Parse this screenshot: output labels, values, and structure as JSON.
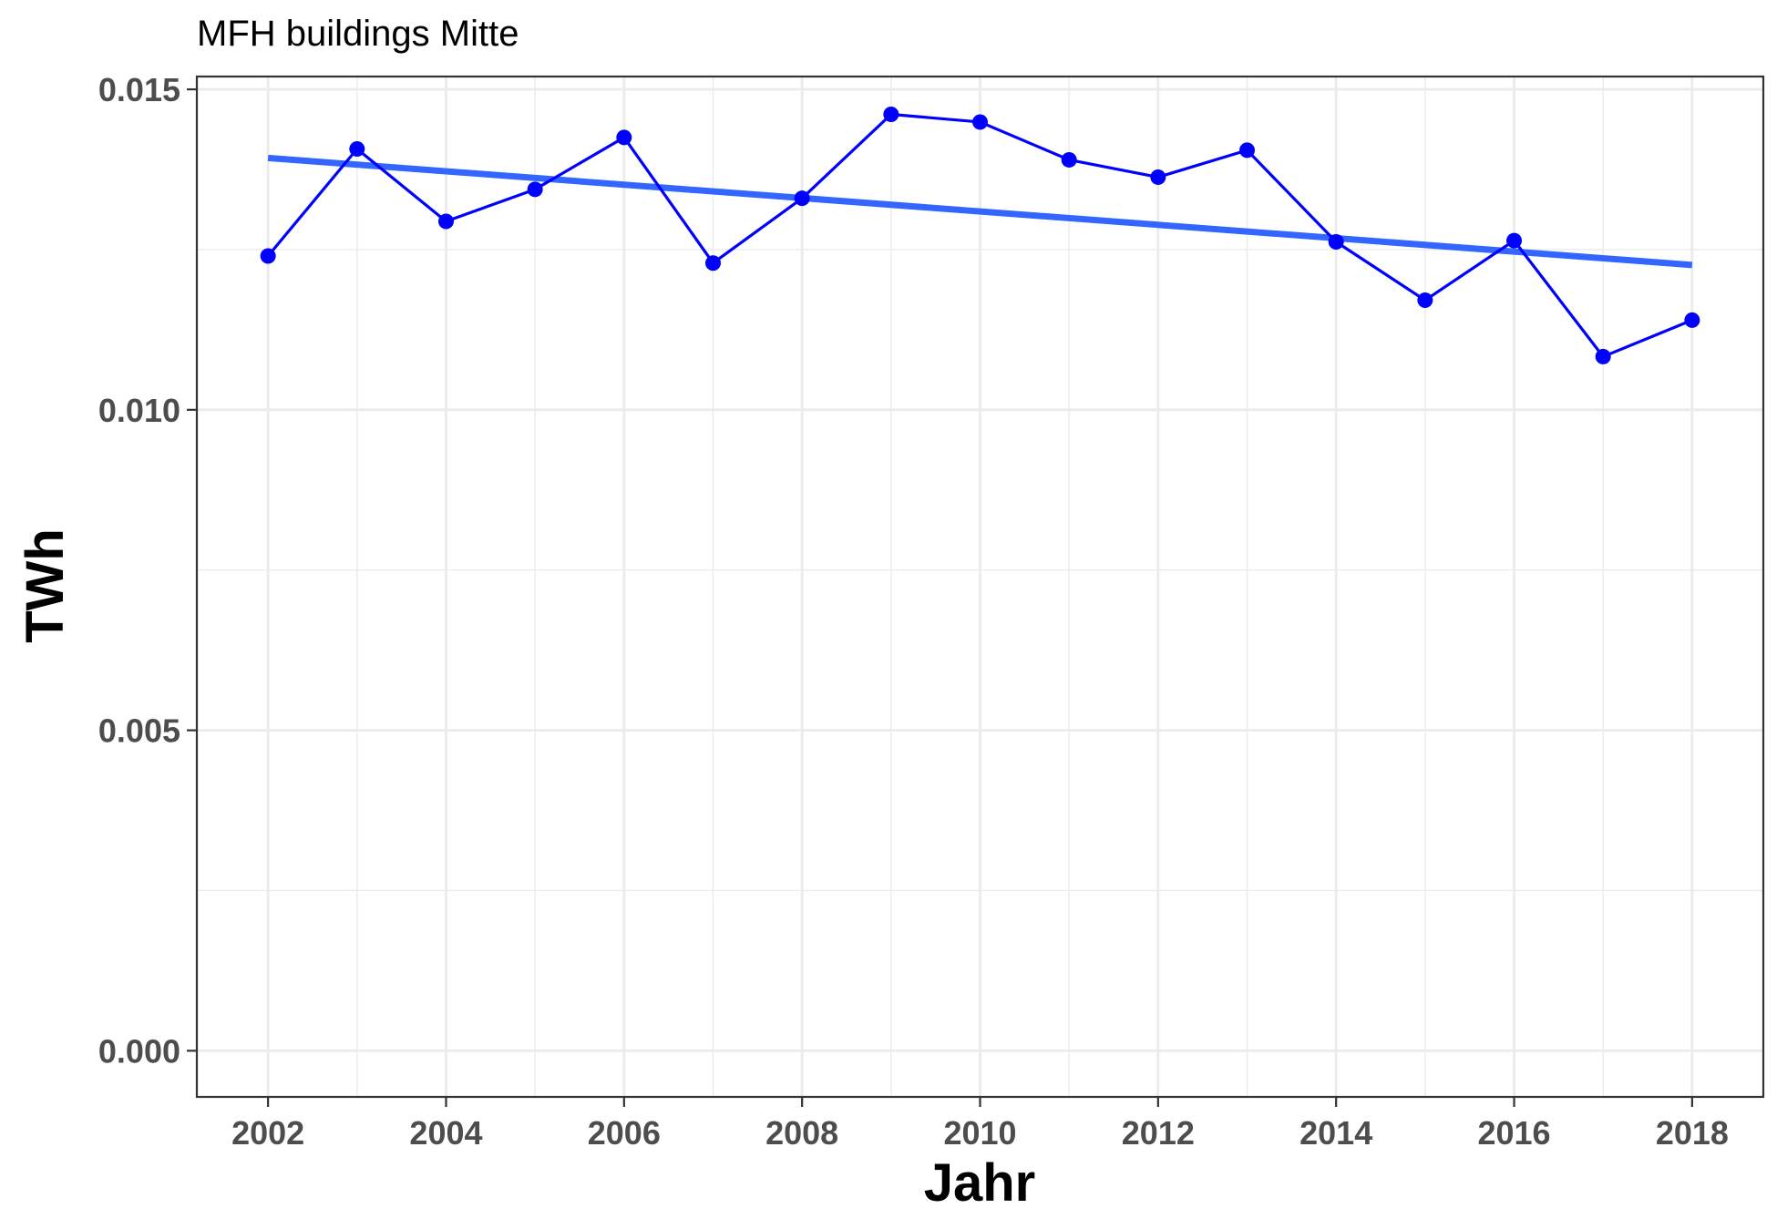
{
  "chart_data": {
    "type": "line",
    "title": "MFH buildings Mitte",
    "xlabel": "Jahr",
    "ylabel": "TWh",
    "xlim": [
      2001.2,
      2018.8
    ],
    "ylim": [
      -0.00072,
      0.0152
    ],
    "x_ticks": [
      2002,
      2004,
      2006,
      2008,
      2010,
      2012,
      2014,
      2016,
      2018
    ],
    "x_tick_labels": [
      "2002",
      "2004",
      "2006",
      "2008",
      "2010",
      "2012",
      "2014",
      "2016",
      "2018"
    ],
    "y_ticks": [
      0.0,
      0.005,
      0.01,
      0.015
    ],
    "y_tick_labels": [
      "0.000",
      "0.005",
      "0.010",
      "0.015"
    ],
    "grid": true,
    "series": [
      {
        "color": "#0000ff",
        "x": [
          2002,
          2003,
          2004,
          2005,
          2006,
          2007,
          2008,
          2009,
          2010,
          2011,
          2012,
          2013,
          2014,
          2015,
          2016,
          2017,
          2018
        ],
        "values": [
          0.0124,
          0.01407,
          0.01294,
          0.01344,
          0.01425,
          0.01229,
          0.0133,
          0.01461,
          0.01449,
          0.0139,
          0.01363,
          0.01405,
          0.01262,
          0.01171,
          0.01264,
          0.01083,
          0.0114
        ]
      }
    ],
    "trend_line": {
      "color": "#3366ff",
      "x": [
        2002,
        2018
      ],
      "values": [
        0.01393,
        0.01226
      ]
    }
  }
}
